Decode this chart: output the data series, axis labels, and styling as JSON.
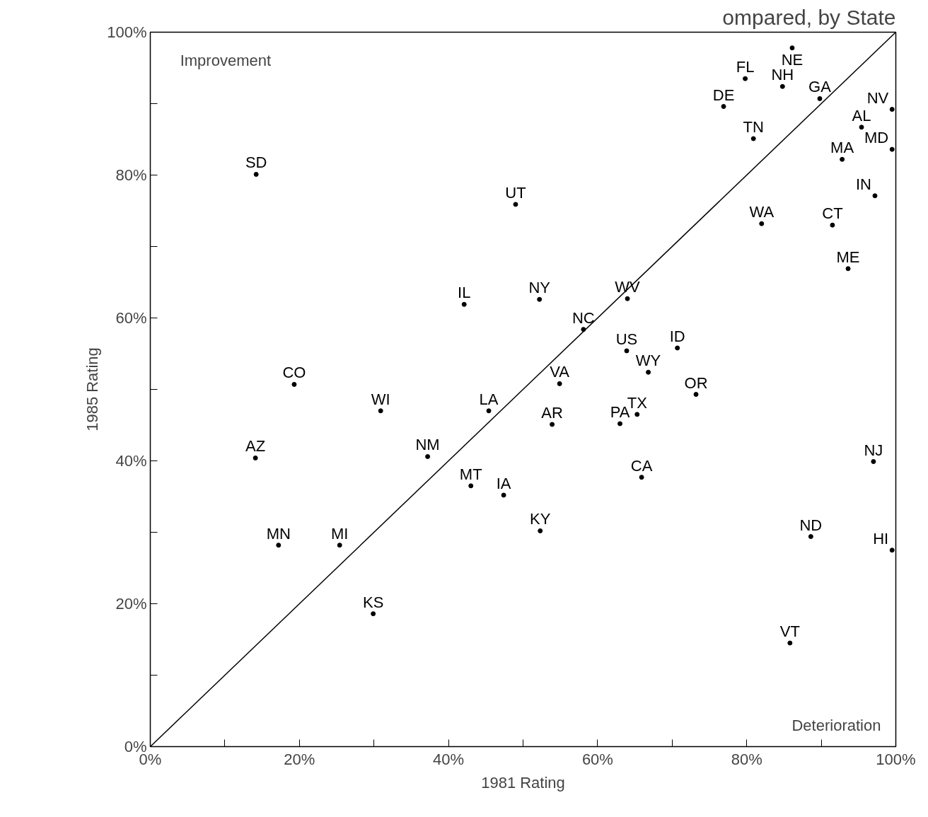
{
  "chart_data": {
    "type": "scatter",
    "title": "ompared, by State",
    "xlabel": "1981 Rating",
    "ylabel": "1985 Rating",
    "xlim": [
      0,
      100
    ],
    "ylim": [
      0,
      100
    ],
    "xticks": [
      {
        "value": 0,
        "label": "0%"
      },
      {
        "value": 10,
        "label": null
      },
      {
        "value": 20,
        "label": "20%"
      },
      {
        "value": 30,
        "label": null
      },
      {
        "value": 40,
        "label": "40%"
      },
      {
        "value": 50,
        "label": null
      },
      {
        "value": 60,
        "label": "60%"
      },
      {
        "value": 70,
        "label": null
      },
      {
        "value": 80,
        "label": "80%"
      },
      {
        "value": 90,
        "label": null
      },
      {
        "value": 100,
        "label": "100%"
      }
    ],
    "yticks": [
      {
        "value": 0,
        "label": "0%"
      },
      {
        "value": 10,
        "label": null
      },
      {
        "value": 20,
        "label": "20%"
      },
      {
        "value": 30,
        "label": null
      },
      {
        "value": 40,
        "label": "40%"
      },
      {
        "value": 50,
        "label": null
      },
      {
        "value": 60,
        "label": "60%"
      },
      {
        "value": 70,
        "label": null
      },
      {
        "value": 80,
        "label": "80%"
      },
      {
        "value": 90,
        "label": null
      },
      {
        "value": 100,
        "label": "100%"
      }
    ],
    "grid": false,
    "annotations": [
      "Improvement",
      "Deterioration"
    ],
    "series": [
      {
        "type": "scatter",
        "marker": "circle",
        "color": "#000000",
        "x": [
          86.1,
          79.8,
          84.8,
          76.9,
          89.8,
          99.5,
          80.9,
          95.4,
          92.8,
          99.5,
          97.2,
          14.2,
          49.0,
          82.0,
          91.5,
          93.6,
          42.1,
          52.2,
          64.0,
          58.1,
          63.9,
          70.7,
          66.8,
          54.9,
          73.2,
          19.3,
          30.9,
          45.4,
          65.3,
          53.9,
          63.0,
          14.1,
          37.2,
          97.0,
          65.9,
          43.0,
          47.4,
          52.3,
          88.6,
          17.2,
          25.4,
          99.5,
          29.9,
          85.8
        ],
        "values": [
          97.8,
          93.5,
          92.4,
          89.6,
          90.7,
          89.2,
          85.1,
          86.7,
          82.2,
          83.6,
          77.1,
          80.1,
          75.9,
          73.2,
          73.0,
          66.9,
          61.9,
          62.6,
          62.7,
          58.4,
          55.4,
          55.8,
          52.4,
          50.8,
          49.3,
          50.7,
          47.0,
          47.0,
          46.5,
          45.1,
          45.2,
          40.4,
          40.6,
          39.9,
          37.7,
          36.5,
          35.2,
          30.2,
          29.4,
          28.2,
          28.2,
          27.5,
          18.6,
          14.5
        ],
        "value_labels": [
          "NE",
          "FL",
          "NH",
          "DE",
          "GA",
          "NV",
          "TN",
          "AL",
          "MA",
          "MD",
          "IN",
          "SD",
          "UT",
          "WA",
          "CT",
          "ME",
          "IL",
          "NY",
          "WV",
          "NC",
          "US",
          "ID",
          "WY",
          "VA",
          "OR",
          "CO",
          "WI",
          "LA",
          "TX",
          "AR",
          "PA",
          "AZ",
          "NM",
          "NJ",
          "CA",
          "MT",
          "IA",
          "KY",
          "ND",
          "MN",
          "MI",
          "HI",
          "KS",
          "VT"
        ]
      },
      {
        "type": "line",
        "color": "#000000",
        "x": [
          0,
          100
        ],
        "values": [
          0,
          100
        ]
      }
    ]
  }
}
